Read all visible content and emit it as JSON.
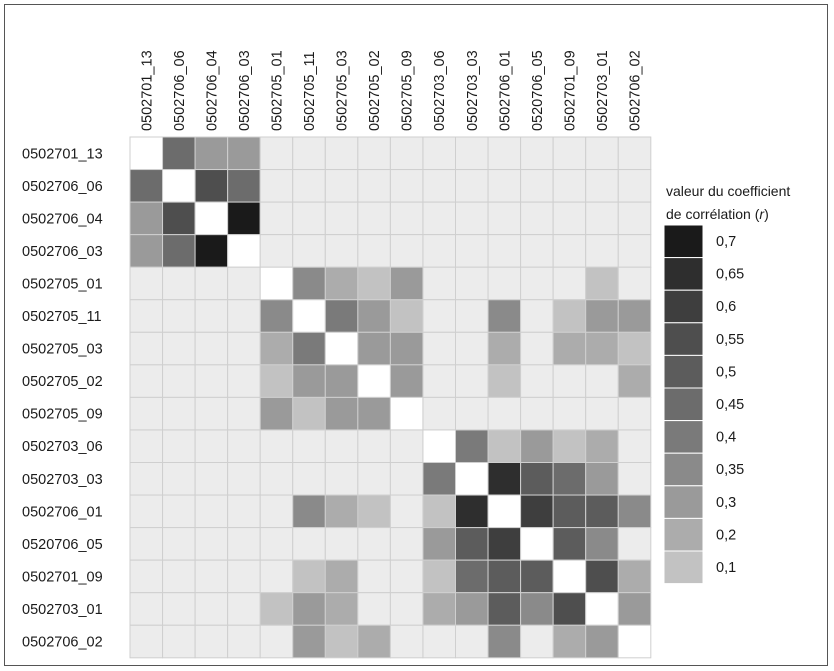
{
  "chart_data": {
    "type": "heatmap",
    "row_labels": [
      "0502701_13",
      "0502706_06",
      "0502706_04",
      "0502706_03",
      "0502705_01",
      "0502705_11",
      "0502705_03",
      "0502705_02",
      "0502705_09",
      "0502703_06",
      "0502703_03",
      "0502706_01",
      "0520706_05",
      "0502701_09",
      "0502703_01",
      "0502706_02"
    ],
    "col_labels": [
      "0502701_13",
      "0502706_06",
      "0502706_04",
      "0502706_03",
      "0502705_01",
      "0502705_11",
      "0502705_03",
      "0502705_02",
      "0502705_09",
      "0502703_06",
      "0502703_03",
      "0502706_01",
      "0520706_05",
      "0502701_09",
      "0502703_01",
      "0502706_02"
    ],
    "values": [
      [
        1,
        0.45,
        0.3,
        0.25,
        0,
        0,
        0,
        0,
        0,
        0,
        0,
        0,
        0,
        0,
        0,
        0
      ],
      [
        0.45,
        1,
        0.55,
        0.45,
        0,
        0,
        0,
        0,
        0,
        0,
        0,
        0,
        0,
        0,
        0,
        0
      ],
      [
        0.3,
        0.55,
        1,
        0.7,
        0,
        0,
        0,
        0,
        0,
        0,
        0,
        0,
        0,
        0,
        0,
        0
      ],
      [
        0.25,
        0.45,
        0.7,
        1,
        0,
        0,
        0,
        0,
        0,
        0,
        0,
        0,
        0,
        0,
        0,
        0
      ],
      [
        0,
        0,
        0,
        0,
        1,
        0.35,
        0.2,
        0.1,
        0.25,
        0,
        0,
        0,
        0,
        0,
        0.1,
        0
      ],
      [
        0,
        0,
        0,
        0,
        0.35,
        1,
        0.4,
        0.3,
        0.1,
        0,
        0,
        0.35,
        0,
        0.1,
        0.25,
        0.25
      ],
      [
        0,
        0,
        0,
        0,
        0.2,
        0.4,
        1,
        0.3,
        0.3,
        0,
        0,
        0.2,
        0,
        0.2,
        0.2,
        0.1
      ],
      [
        0,
        0,
        0,
        0,
        0.1,
        0.3,
        0.3,
        1,
        0.3,
        0,
        0,
        0.1,
        0,
        0,
        0,
        0.2
      ],
      [
        0,
        0,
        0,
        0,
        0.25,
        0.1,
        0.3,
        0.3,
        1,
        0,
        0,
        0,
        0,
        0,
        0,
        0
      ],
      [
        0,
        0,
        0,
        0,
        0,
        0,
        0,
        0,
        0,
        1,
        0.4,
        0.1,
        0.3,
        0.1,
        0.2,
        0
      ],
      [
        0,
        0,
        0,
        0,
        0,
        0,
        0,
        0,
        0,
        0.4,
        1,
        0.65,
        0.5,
        0.45,
        0.3,
        0
      ],
      [
        0,
        0,
        0,
        0,
        0,
        0.35,
        0.2,
        0.1,
        0,
        0.1,
        0.65,
        1,
        0.6,
        0.5,
        0.5,
        0.35
      ],
      [
        0,
        0,
        0,
        0,
        0,
        0,
        0,
        0,
        0,
        0.3,
        0.5,
        0.6,
        1,
        0.5,
        0.35,
        0
      ],
      [
        0,
        0.0,
        0,
        0,
        0,
        0.1,
        0.2,
        0,
        0,
        0.1,
        0.45,
        0.5,
        0.5,
        1,
        0.55,
        0.2
      ],
      [
        0,
        0,
        0,
        0,
        0.1,
        0.25,
        0.2,
        0,
        0,
        0.2,
        0.3,
        0.5,
        0.35,
        0.55,
        1,
        0.3
      ],
      [
        0,
        0,
        0,
        0,
        0,
        0.25,
        0.1,
        0.2,
        0,
        0,
        0,
        0.35,
        0,
        0.2,
        0.3,
        1
      ]
    ],
    "legend": {
      "title_line1": "valeur du coefficient",
      "title_line2_prefix": "de corrélation (",
      "title_line2_var": "r",
      "title_line2_suffix": ")",
      "levels": [
        "0,7",
        "0,65",
        "0,6",
        "0,55",
        "0,5",
        "0,45",
        "0,4",
        "0,35",
        "0,3",
        "0,2",
        "0,1"
      ],
      "colors": [
        "#1a1a1a",
        "#2e2e2e",
        "#3e3e3e",
        "#4e4e4e",
        "#5c5c5c",
        "#6c6c6c",
        "#7a7a7a",
        "#8a8a8a",
        "#9a9a9a",
        "#acacac",
        "#c2c2c2"
      ],
      "placement": "right"
    },
    "colors": {
      "zero": "#ececec",
      "diagonal": "#ffffff",
      "grid": "#cfcfcf"
    }
  }
}
